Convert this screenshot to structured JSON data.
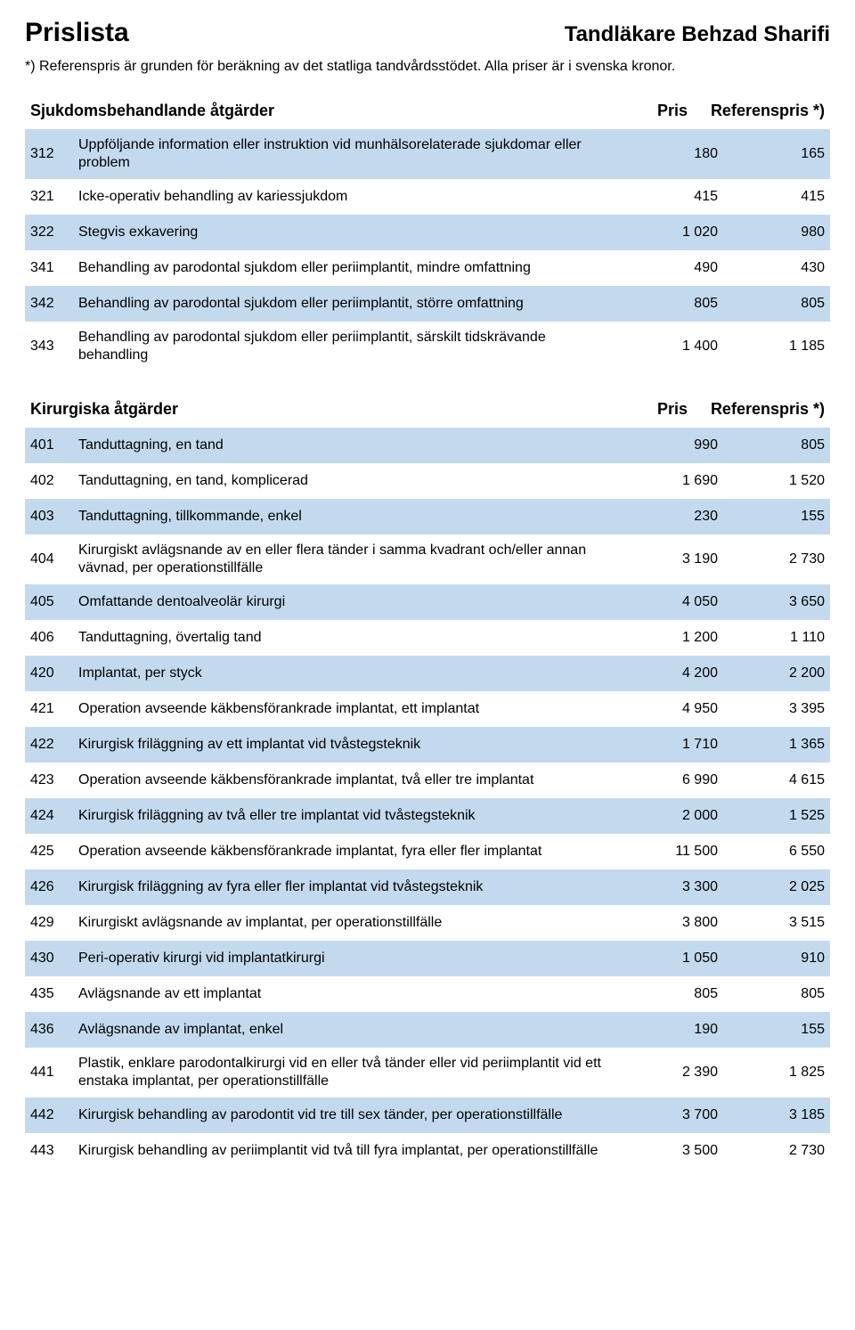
{
  "header": {
    "title_left": "Prislista",
    "title_right": "Tandläkare Behzad Sharifi",
    "note": "*) Referenspris är grunden för beräkning av det statliga tandvårdsstödet. Alla priser är i svenska kronor."
  },
  "columns": {
    "price": "Pris",
    "ref": "Referenspris *)"
  },
  "sections": [
    {
      "title": "Sjukdomsbehandlande åtgärder",
      "rows": [
        {
          "code": "312",
          "desc": "Uppföljande information eller instruktion vid munhälsorelaterade sjukdomar eller problem",
          "price": "180",
          "ref": "165",
          "shade": true
        },
        {
          "code": "321",
          "desc": "Icke-operativ behandling av kariessjukdom",
          "price": "415",
          "ref": "415",
          "shade": false
        },
        {
          "code": "322",
          "desc": "Stegvis exkavering",
          "price": "1 020",
          "ref": "980",
          "shade": true
        },
        {
          "code": "341",
          "desc": "Behandling av parodontal sjukdom eller periimplantit, mindre omfattning",
          "price": "490",
          "ref": "430",
          "shade": false
        },
        {
          "code": "342",
          "desc": "Behandling av parodontal sjukdom eller periimplantit, större omfattning",
          "price": "805",
          "ref": "805",
          "shade": true
        },
        {
          "code": "343",
          "desc": "Behandling av parodontal sjukdom eller periimplantit, särskilt tidskrävande behandling",
          "price": "1 400",
          "ref": "1 185",
          "shade": false
        }
      ]
    },
    {
      "title": "Kirurgiska åtgärder",
      "rows": [
        {
          "code": "401",
          "desc": "Tanduttagning, en tand",
          "price": "990",
          "ref": "805",
          "shade": true
        },
        {
          "code": "402",
          "desc": "Tanduttagning, en tand, komplicerad",
          "price": "1 690",
          "ref": "1 520",
          "shade": false
        },
        {
          "code": "403",
          "desc": "Tanduttagning, tillkommande, enkel",
          "price": "230",
          "ref": "155",
          "shade": true
        },
        {
          "code": "404",
          "desc": "Kirurgiskt avlägsnande av en eller flera tänder i samma kvadrant och/eller annan vävnad, per operationstillfälle",
          "price": "3 190",
          "ref": "2 730",
          "shade": false
        },
        {
          "code": "405",
          "desc": "Omfattande dentoalveolär kirurgi",
          "price": "4 050",
          "ref": "3 650",
          "shade": true
        },
        {
          "code": "406",
          "desc": "Tanduttagning, övertalig tand",
          "price": "1 200",
          "ref": "1 110",
          "shade": false
        },
        {
          "code": "420",
          "desc": "Implantat, per styck",
          "price": "4 200",
          "ref": "2 200",
          "shade": true
        },
        {
          "code": "421",
          "desc": "Operation avseende käkbensförankrade implantat, ett implantat",
          "price": "4 950",
          "ref": "3 395",
          "shade": false
        },
        {
          "code": "422",
          "desc": "Kirurgisk friläggning av ett implantat vid tvåstegsteknik",
          "price": "1 710",
          "ref": "1 365",
          "shade": true
        },
        {
          "code": "423",
          "desc": "Operation avseende käkbensförankrade implantat, två eller tre implantat",
          "price": "6 990",
          "ref": "4 615",
          "shade": false
        },
        {
          "code": "424",
          "desc": "Kirurgisk friläggning av två eller tre implantat vid tvåstegsteknik",
          "price": "2 000",
          "ref": "1 525",
          "shade": true
        },
        {
          "code": "425",
          "desc": "Operation avseende käkbensförankrade implantat, fyra eller fler implantat",
          "price": "11 500",
          "ref": "6 550",
          "shade": false
        },
        {
          "code": "426",
          "desc": "Kirurgisk friläggning av fyra eller fler implantat vid tvåstegsteknik",
          "price": "3 300",
          "ref": "2 025",
          "shade": true
        },
        {
          "code": "429",
          "desc": "Kirurgiskt avlägsnande av implantat, per operationstillfälle",
          "price": "3 800",
          "ref": "3 515",
          "shade": false
        },
        {
          "code": "430",
          "desc": "Peri-operativ kirurgi vid implantatkirurgi",
          "price": "1 050",
          "ref": "910",
          "shade": true
        },
        {
          "code": "435",
          "desc": "Avlägsnande av ett implantat",
          "price": "805",
          "ref": "805",
          "shade": false
        },
        {
          "code": "436",
          "desc": "Avlägsnande av implantat, enkel",
          "price": "190",
          "ref": "155",
          "shade": true
        },
        {
          "code": "441",
          "desc": "Plastik, enklare parodontalkirurgi vid en eller två tänder eller vid periimplantit vid ett enstaka implantat, per operationstillfälle",
          "price": "2 390",
          "ref": "1 825",
          "shade": false
        },
        {
          "code": "442",
          "desc": "Kirurgisk behandling av parodontit vid tre till sex tänder, per operationstillfälle",
          "price": "3 700",
          "ref": "3 185",
          "shade": true
        },
        {
          "code": "443",
          "desc": "Kirurgisk behandling av periimplantit vid två till fyra implantat, per operationstillfälle",
          "price": "3 500",
          "ref": "2 730",
          "shade": false
        }
      ]
    }
  ]
}
